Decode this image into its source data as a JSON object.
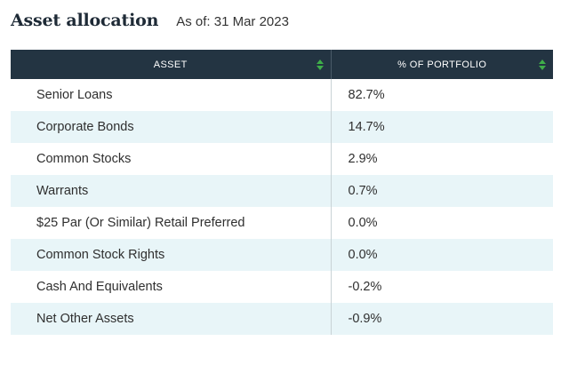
{
  "header": {
    "title": "Asset allocation",
    "as_of": "As of: 31 Mar 2023"
  },
  "table": {
    "columns": [
      {
        "label": "ASSET",
        "sort_icon": "sort-updown-icon"
      },
      {
        "label": "% OF PORTFOLIO",
        "sort_icon": "sort-updown-icon"
      }
    ],
    "rows": [
      {
        "asset": "Senior Loans",
        "percent": "82.7%"
      },
      {
        "asset": "Corporate Bonds",
        "percent": "14.7%"
      },
      {
        "asset": "Common Stocks",
        "percent": "2.9%"
      },
      {
        "asset": "Warrants",
        "percent": "0.7%"
      },
      {
        "asset": "$25 Par (Or Similar) Retail Preferred",
        "percent": "0.0%"
      },
      {
        "asset": "Common Stock Rights",
        "percent": "0.0%"
      },
      {
        "asset": "Cash And Equivalents",
        "percent": "-0.2%"
      },
      {
        "asset": "Net Other Assets",
        "percent": "-0.9%"
      }
    ]
  },
  "colors": {
    "header_bg": "#233442",
    "stripe": "#e8f5f8",
    "sort_icon": "#3fae49"
  }
}
